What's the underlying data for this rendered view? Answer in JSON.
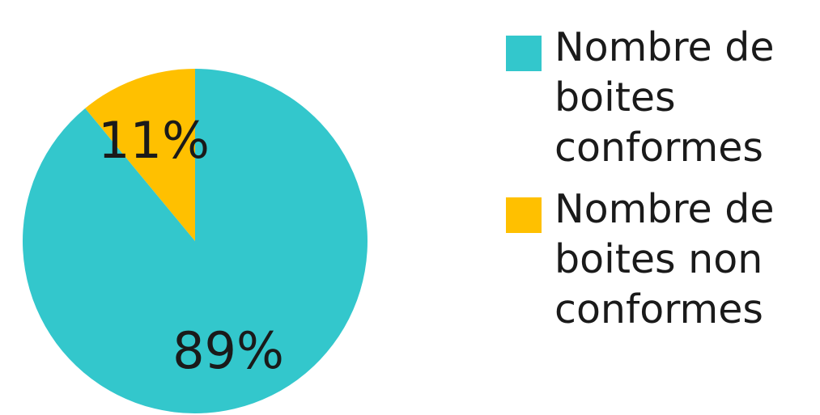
{
  "chart_data": {
    "type": "pie",
    "slices": [
      {
        "label": "Nombre de boites conformes",
        "value": 89,
        "display": "89%",
        "color": "#33C7CC"
      },
      {
        "label": "Nombre de boites non conformes",
        "value": 11,
        "display": "11%",
        "color": "#FFC000"
      }
    ],
    "legend_position": "right"
  }
}
